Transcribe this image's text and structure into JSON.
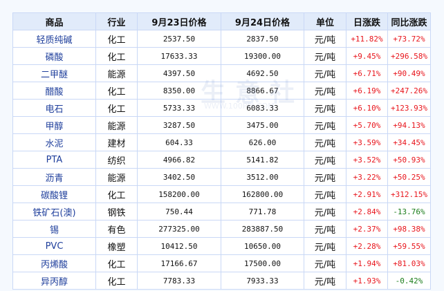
{
  "watermark": {
    "text": "生意社",
    "url": "WWW.100PPI.COM"
  },
  "headers": [
    "商品",
    "行业",
    "9月23日价格",
    "9月24日价格",
    "单位",
    "日涨跌",
    "同比涨跌"
  ],
  "rows": [
    [
      "轻质纯碱",
      "化工",
      "2537.50",
      "2837.50",
      "元/吨",
      "+11.82%",
      "+73.72%"
    ],
    [
      "磷酸",
      "化工",
      "17633.33",
      "19300.00",
      "元/吨",
      "+9.45%",
      "+296.58%"
    ],
    [
      "二甲醚",
      "能源",
      "4397.50",
      "4692.50",
      "元/吨",
      "+6.71%",
      "+90.49%"
    ],
    [
      "醋酸",
      "化工",
      "8350.00",
      "8866.67",
      "元/吨",
      "+6.19%",
      "+247.26%"
    ],
    [
      "电石",
      "化工",
      "5733.33",
      "6083.33",
      "元/吨",
      "+6.10%",
      "+123.93%"
    ],
    [
      "甲醇",
      "能源",
      "3287.50",
      "3475.00",
      "元/吨",
      "+5.70%",
      "+94.13%"
    ],
    [
      "水泥",
      "建材",
      "604.33",
      "626.00",
      "元/吨",
      "+3.59%",
      "+34.45%"
    ],
    [
      "PTA",
      "纺织",
      "4966.82",
      "5141.82",
      "元/吨",
      "+3.52%",
      "+50.93%"
    ],
    [
      "沥青",
      "能源",
      "3402.50",
      "3512.00",
      "元/吨",
      "+3.22%",
      "+50.25%"
    ],
    [
      "碳酸锂",
      "化工",
      "158200.00",
      "162800.00",
      "元/吨",
      "+2.91%",
      "+312.15%"
    ],
    [
      "铁矿石(澳)",
      "钢铁",
      "750.44",
      "771.78",
      "元/吨",
      "+2.84%",
      "-13.76%"
    ],
    [
      "锡",
      "有色",
      "277325.00",
      "283887.50",
      "元/吨",
      "+2.37%",
      "+98.38%"
    ],
    [
      "PVC",
      "橡塑",
      "10412.50",
      "10650.00",
      "元/吨",
      "+2.28%",
      "+59.55%"
    ],
    [
      "丙烯酸",
      "化工",
      "17166.67",
      "17500.00",
      "元/吨",
      "+1.94%",
      "+81.03%"
    ],
    [
      "异丙醇",
      "化工",
      "7783.33",
      "7933.33",
      "元/吨",
      "+1.93%",
      "-0.42%"
    ]
  ],
  "colors": {
    "up": "#e8141b",
    "down": "#1b7d1b",
    "link": "#1f3f9c",
    "header_bg": "#e1ebfa"
  }
}
